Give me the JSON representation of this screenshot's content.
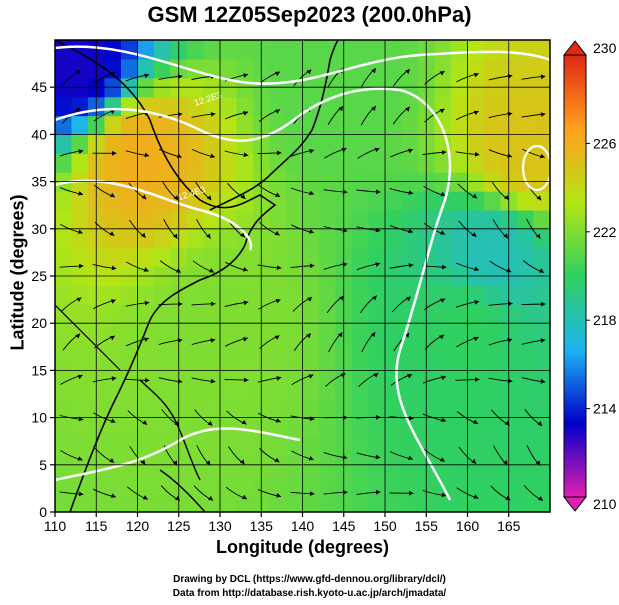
{
  "title": "GSM 12Z05Sep2023 (200.0hPa)",
  "credits": {
    "line1": "Drawing by DCL (https://www.gfd-dennou.org/library/dcl/)",
    "line2": "Data from http://database.rish.kyoto-u.ac.jp/arch/jmadata/"
  },
  "chart_data": {
    "type": "heatmap",
    "title": "GSM 12Z05Sep2023 (200.0hPa)",
    "xlabel": "Longitude (degrees)",
    "ylabel": "Latitude  (degrees)",
    "xlim": [
      110,
      170
    ],
    "ylim": [
      0,
      50
    ],
    "x_ticks": [
      110,
      115,
      120,
      125,
      130,
      135,
      140,
      145,
      150,
      155,
      160,
      165
    ],
    "y_ticks": [
      0,
      5,
      10,
      15,
      20,
      25,
      30,
      35,
      40,
      45
    ],
    "grid": true,
    "colorbar": {
      "min": 210,
      "max": 230,
      "ticks": [
        210,
        214,
        218,
        222,
        226,
        230
      ],
      "colors": [
        "#e020b0",
        "#0000c8",
        "#1eb4f0",
        "#30d060",
        "#b4e614",
        "#ffa01e",
        "#e02814"
      ]
    },
    "field_features": [
      {
        "lon": 113,
        "lat": 47,
        "value": 213
      },
      {
        "lon": 120,
        "lat": 38,
        "value": 226
      },
      {
        "lon": 167,
        "lat": 38,
        "value": 225
      },
      {
        "lon": 163,
        "lat": 27,
        "value": 218
      },
      {
        "lon": 145,
        "lat": 45,
        "value": 221
      },
      {
        "lon": 130,
        "lat": 20,
        "value": 222
      },
      {
        "lon": 160,
        "lat": 20,
        "value": 220
      }
    ],
    "contour_labels": [
      "12.2E3",
      "12.4E3"
    ]
  }
}
